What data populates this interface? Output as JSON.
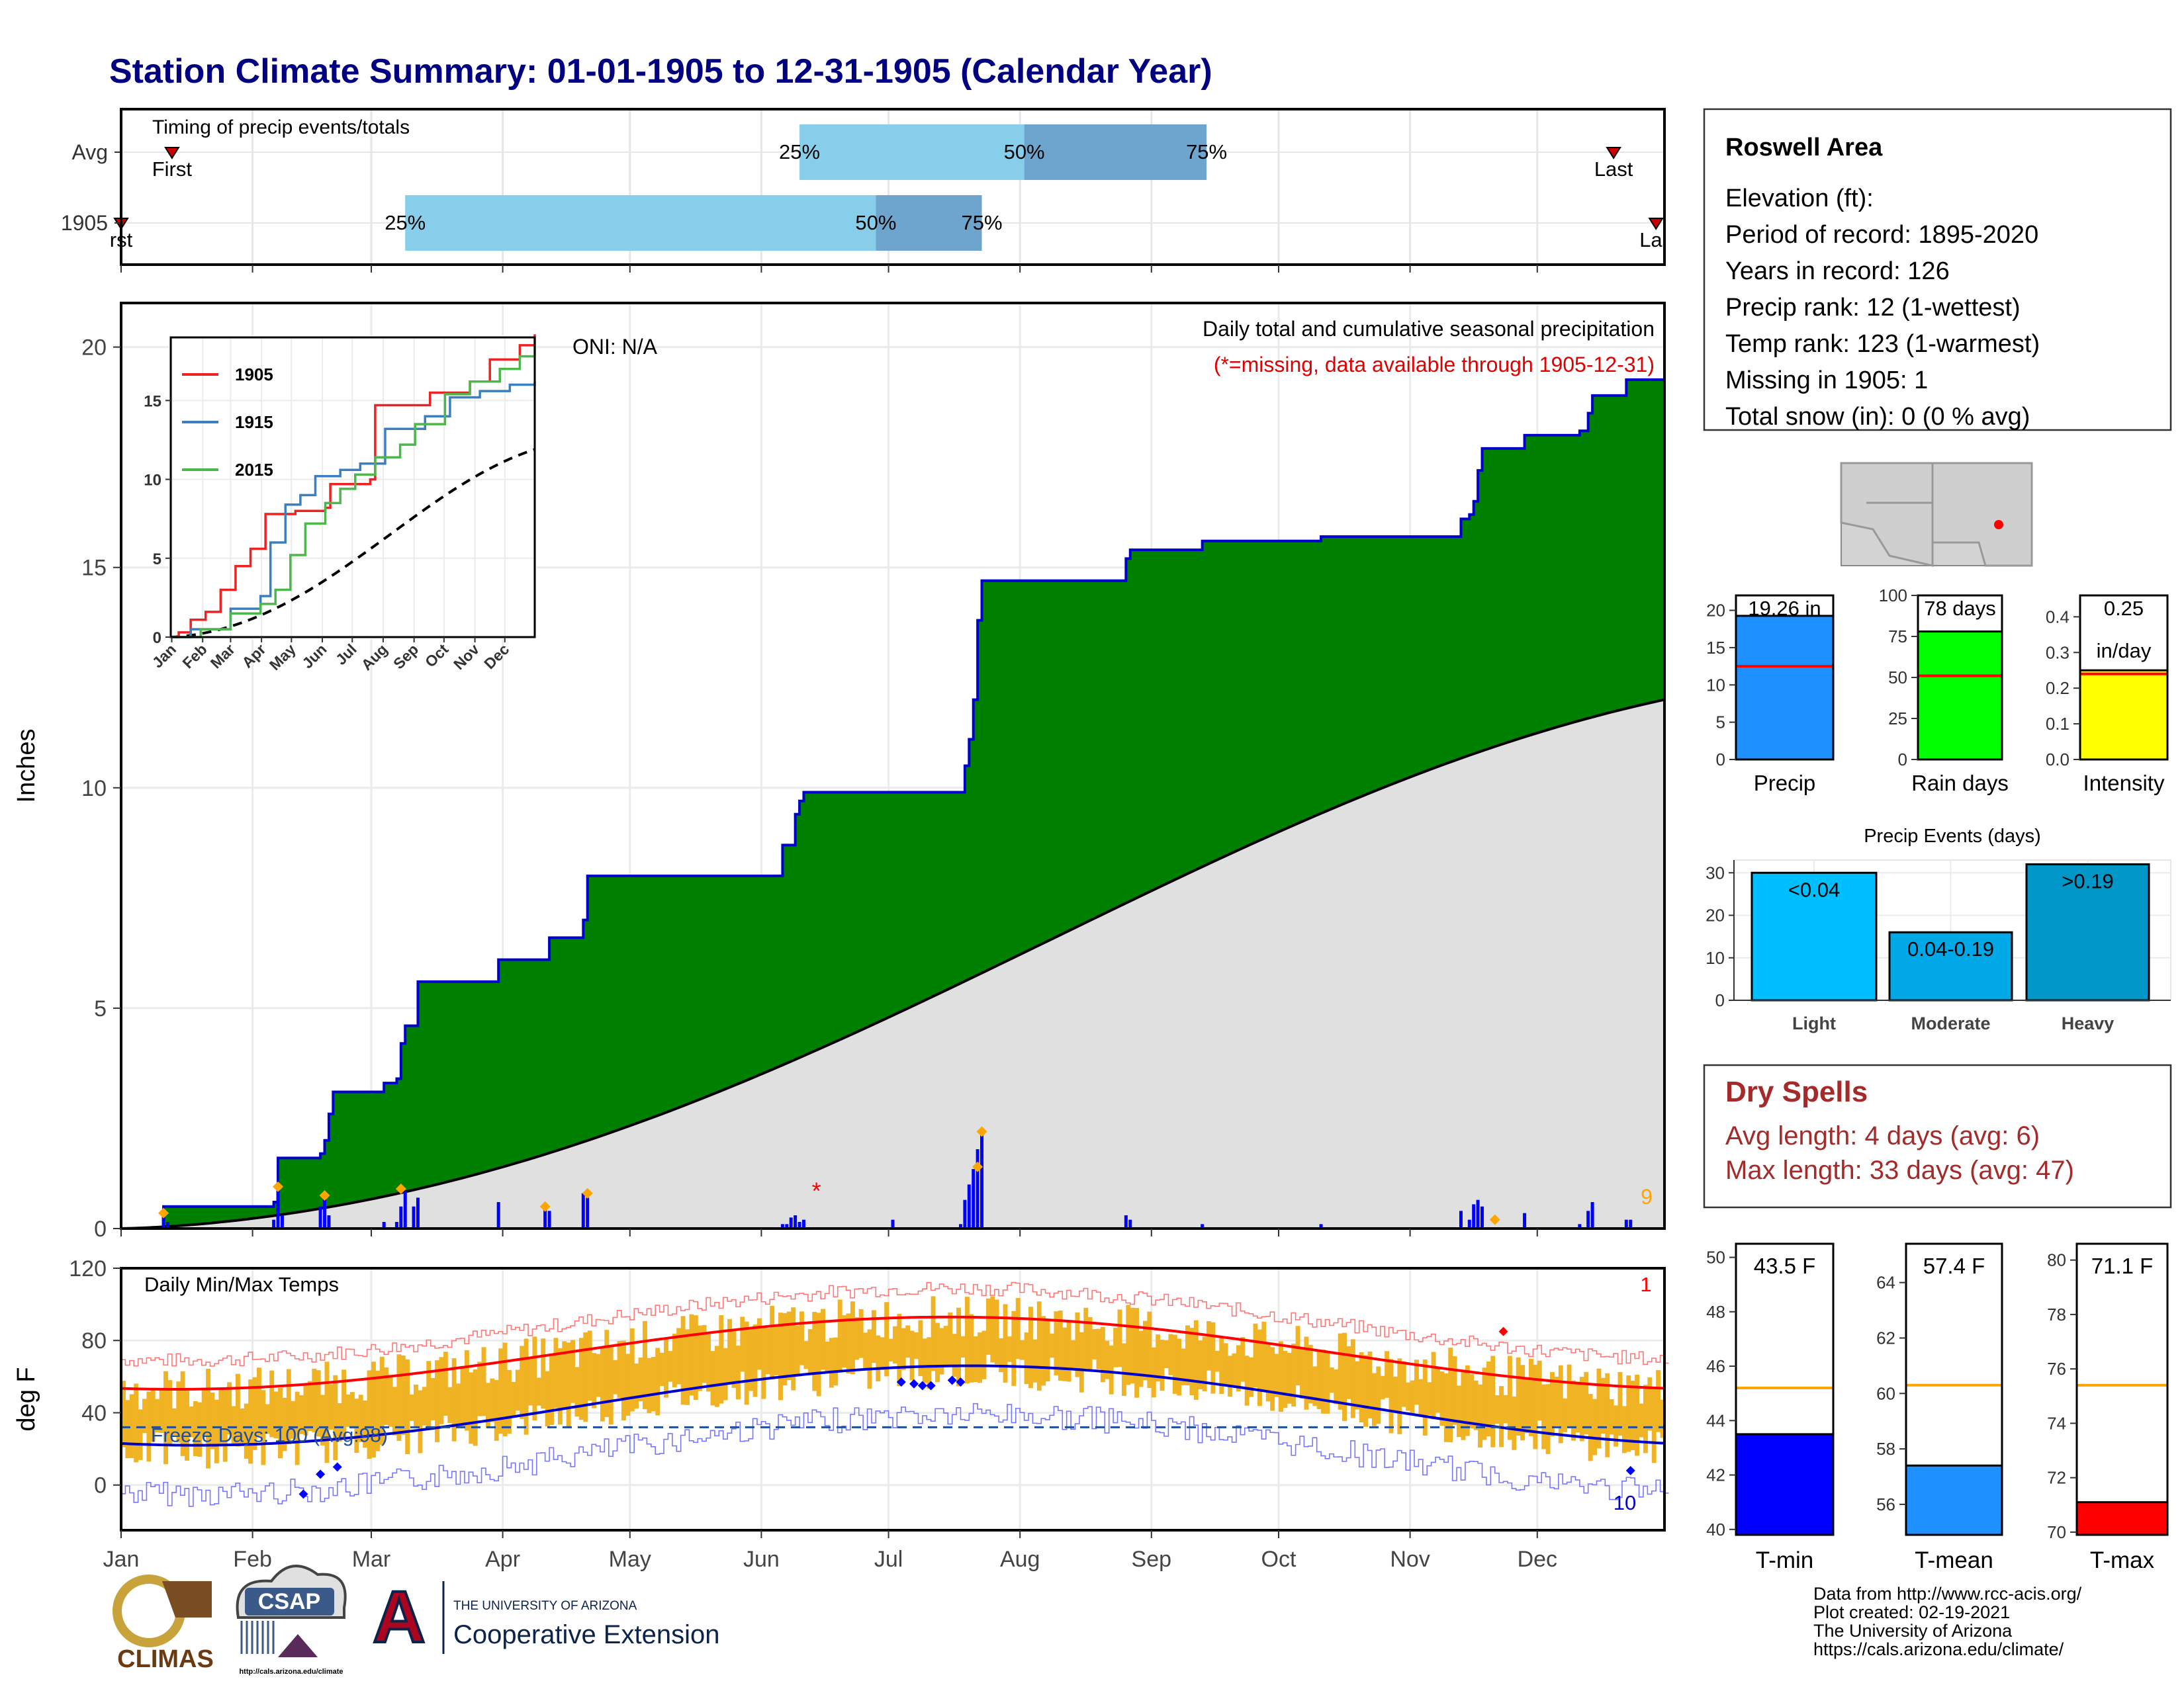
{
  "title": "Station Climate Summary: 01-01-1905 to 12-31-1905 (Calendar Year)",
  "months": [
    "Jan",
    "Feb",
    "Mar",
    "Apr",
    "May",
    "Jun",
    "Jul",
    "Aug",
    "Sep",
    "Oct",
    "Nov",
    "Dec"
  ],
  "timing": {
    "label": "Timing of precip events/totals",
    "rows": [
      {
        "name": "Avg",
        "first_doy": 13,
        "last_doy": 353,
        "p25": 161,
        "p50": 214,
        "p75": 257,
        "first_label": "First",
        "last_label": "Last",
        "p25_label": "25%",
        "p50_label": "50%",
        "p75_label": "75%"
      },
      {
        "name": "1905",
        "first_doy": 1,
        "last_doy": 363,
        "p25": 68,
        "p50": 179,
        "p75": 204,
        "first_label": "rst",
        "last_label": "Las",
        "p25_label": "25%",
        "p50_label": "50%",
        "p75_label": "75%"
      }
    ],
    "colors": {
      "light": "#87ceeb",
      "dark": "#6ea5cf",
      "marker": "#cc0000"
    }
  },
  "precip": {
    "ylabel": "Inches",
    "yticks": [
      0,
      5,
      10,
      15,
      20
    ],
    "ylim": [
      0,
      21
    ],
    "oni": "ONI: N/A",
    "note1": "Daily total and cumulative seasonal precipitation",
    "note2": "(*=missing, data available through 1905-12-31)",
    "count_label": "9",
    "missing_marker": "*",
    "missing_doy": 165,
    "colors": {
      "fill": "#008000",
      "line": "#0000cc",
      "avg_fill": "#e0e0e0",
      "avg_line": "#000000",
      "bar": "#0000ff",
      "diamond": "#ffa500",
      "missing": "#ff0000",
      "count": "#ffa500"
    },
    "steps": [
      [
        1,
        0
      ],
      [
        11,
        0.5
      ],
      [
        37,
        0.6
      ],
      [
        38,
        1.6
      ],
      [
        48,
        1.7
      ],
      [
        49,
        2.0
      ],
      [
        50,
        2.6
      ],
      [
        51,
        3.1
      ],
      [
        62,
        3.1
      ],
      [
        63,
        3.3
      ],
      [
        66,
        3.4
      ],
      [
        67,
        4.2
      ],
      [
        68,
        4.6
      ],
      [
        71,
        5.6
      ],
      [
        89,
        5.6
      ],
      [
        90,
        6.1
      ],
      [
        101,
        6.1
      ],
      [
        102,
        6.6
      ],
      [
        110,
        7.0
      ],
      [
        111,
        8.0
      ],
      [
        156,
        8.0
      ],
      [
        157,
        8.7
      ],
      [
        160,
        9.4
      ],
      [
        161,
        9.7
      ],
      [
        162,
        9.9
      ],
      [
        197,
        9.9
      ],
      [
        200,
        10.5
      ],
      [
        201,
        11.1
      ],
      [
        202,
        12.0
      ],
      [
        203,
        13.8
      ],
      [
        204,
        14.7
      ],
      [
        237,
        14.7
      ],
      [
        238,
        15.2
      ],
      [
        239,
        15.4
      ],
      [
        255,
        15.4
      ],
      [
        256,
        15.6
      ],
      [
        283,
        15.6
      ],
      [
        284,
        15.7
      ],
      [
        316,
        15.7
      ],
      [
        317,
        16.1
      ],
      [
        319,
        16.2
      ],
      [
        320,
        16.5
      ],
      [
        321,
        17.2
      ],
      [
        322,
        17.7
      ],
      [
        331,
        17.7
      ],
      [
        332,
        18.0
      ],
      [
        344,
        18.0
      ],
      [
        345,
        18.1
      ],
      [
        347,
        18.5
      ],
      [
        348,
        18.9
      ],
      [
        355,
        18.9
      ],
      [
        356,
        19.26
      ],
      [
        365,
        19.26
      ]
    ],
    "avg_total": 12.0,
    "daily": [
      [
        11,
        0.35
      ],
      [
        12,
        0.15
      ],
      [
        37,
        0.2
      ],
      [
        38,
        0.95
      ],
      [
        39,
        0.3
      ],
      [
        48,
        0.5
      ],
      [
        49,
        0.7
      ],
      [
        50,
        0.3
      ],
      [
        63,
        0.15
      ],
      [
        66,
        0.15
      ],
      [
        67,
        0.5
      ],
      [
        68,
        0.85
      ],
      [
        70,
        0.5
      ],
      [
        71,
        0.7
      ],
      [
        90,
        0.6
      ],
      [
        101,
        0.5
      ],
      [
        102,
        0.4
      ],
      [
        110,
        0.8
      ],
      [
        111,
        0.7
      ],
      [
        157,
        0.1
      ],
      [
        158,
        0.1
      ],
      [
        159,
        0.25
      ],
      [
        160,
        0.3
      ],
      [
        161,
        0.15
      ],
      [
        162,
        0.2
      ],
      [
        183,
        0.2
      ],
      [
        199,
        0.1
      ],
      [
        200,
        0.65
      ],
      [
        201,
        1.0
      ],
      [
        202,
        1.35
      ],
      [
        203,
        1.8
      ],
      [
        204,
        2.2
      ],
      [
        238,
        0.3
      ],
      [
        239,
        0.2
      ],
      [
        256,
        0.1
      ],
      [
        284,
        0.1
      ],
      [
        317,
        0.4
      ],
      [
        319,
        0.2
      ],
      [
        320,
        0.55
      ],
      [
        321,
        0.65
      ],
      [
        322,
        0.5
      ],
      [
        332,
        0.35
      ],
      [
        345,
        0.1
      ],
      [
        347,
        0.4
      ],
      [
        348,
        0.6
      ],
      [
        356,
        0.2
      ],
      [
        357,
        0.2
      ]
    ],
    "diamonds": [
      [
        11,
        0.35
      ],
      [
        38,
        0.95
      ],
      [
        49,
        0.75
      ],
      [
        67,
        0.9
      ],
      [
        101,
        0.5
      ],
      [
        111,
        0.8
      ],
      [
        203,
        1.4
      ],
      [
        204,
        2.2
      ],
      [
        325,
        0.2
      ]
    ]
  },
  "inset": {
    "yticks": [
      0,
      5,
      10,
      15
    ],
    "ylim": [
      0,
      19
    ],
    "legend": [
      {
        "name": "1905",
        "color": "#ee2222"
      },
      {
        "name": "1915",
        "color": "#3a7fc1"
      },
      {
        "name": "2015",
        "color": "#4cb84c"
      }
    ],
    "avg_color": "#000000",
    "series": [
      {
        "name": "1905",
        "points": [
          [
            0,
            0
          ],
          [
            8,
            0.3
          ],
          [
            20,
            1.1
          ],
          [
            35,
            1.6
          ],
          [
            50,
            3.0
          ],
          [
            65,
            4.5
          ],
          [
            80,
            5.6
          ],
          [
            95,
            7.8
          ],
          [
            125,
            8.0
          ],
          [
            155,
            8.2
          ],
          [
            160,
            9.7
          ],
          [
            200,
            10.0
          ],
          [
            205,
            14.7
          ],
          [
            260,
            15.5
          ],
          [
            300,
            16.2
          ],
          [
            320,
            17.6
          ],
          [
            350,
            18.5
          ],
          [
            365,
            19.2
          ]
        ]
      },
      {
        "name": "1915",
        "points": [
          [
            0,
            0
          ],
          [
            20,
            0.5
          ],
          [
            60,
            1.8
          ],
          [
            90,
            2.6
          ],
          [
            100,
            6.0
          ],
          [
            115,
            8.4
          ],
          [
            130,
            9.0
          ],
          [
            145,
            10.2
          ],
          [
            170,
            10.6
          ],
          [
            190,
            11.0
          ],
          [
            215,
            13.2
          ],
          [
            255,
            14.0
          ],
          [
            280,
            15.2
          ],
          [
            310,
            15.6
          ],
          [
            340,
            16.0
          ],
          [
            365,
            16.2
          ]
        ]
      },
      {
        "name": "2015",
        "points": [
          [
            0,
            0
          ],
          [
            30,
            0.5
          ],
          [
            60,
            1.5
          ],
          [
            90,
            2.1
          ],
          [
            105,
            3.0
          ],
          [
            120,
            5.2
          ],
          [
            135,
            7.2
          ],
          [
            155,
            8.5
          ],
          [
            170,
            9.4
          ],
          [
            185,
            10.3
          ],
          [
            205,
            11.4
          ],
          [
            230,
            12.2
          ],
          [
            245,
            13.5
          ],
          [
            275,
            15.4
          ],
          [
            300,
            16.2
          ],
          [
            330,
            17.0
          ],
          [
            350,
            17.8
          ],
          [
            365,
            18.5
          ]
        ]
      }
    ],
    "avg_total": 11.9
  },
  "temps": {
    "label": "Daily Min/Max Temps",
    "ylabel": "deg F",
    "yticks": [
      0,
      40,
      80,
      120
    ],
    "ylim": [
      -25,
      120
    ],
    "freeze": {
      "label": "Freeze Days: 100 (Avg:98)",
      "level": 32
    },
    "max_count": "1",
    "min_count": "10",
    "colors": {
      "bar": "#f0b323",
      "max_avg": "#ff0000",
      "min_avg": "#0000cc",
      "max_record": "#ff7777",
      "min_record": "#7777ff",
      "freeze": "#1f4e9e",
      "diamond_min": "#0000ff",
      "diamond_max": "#ff0000"
    },
    "diamonds_min": [
      [
        44,
        -5
      ],
      [
        48,
        6
      ],
      [
        52,
        10
      ],
      [
        185,
        57
      ],
      [
        188,
        56
      ],
      [
        190,
        55
      ],
      [
        192,
        55
      ],
      [
        197,
        58
      ],
      [
        199,
        57
      ],
      [
        357,
        8
      ]
    ],
    "diamonds_max": [
      [
        327,
        85
      ]
    ]
  },
  "info": {
    "station": "Roswell Area",
    "lines": [
      "Elevation (ft):",
      "Period of record: 1895-2020",
      "Years in record: 126",
      "Precip rank: 12 (1-wettest)",
      "Temp rank: 123 (1-warmest)",
      "Missing in 1905: 1",
      "Total snow (in): 0 (0 % avg)"
    ]
  },
  "bars3": [
    {
      "label": "Precip",
      "value": 19.26,
      "value_label": "19.26 in",
      "avg": 12.5,
      "yticks": [
        0,
        5,
        10,
        15,
        20
      ],
      "ylim": [
        0,
        22
      ],
      "color": "#1e90ff"
    },
    {
      "label": "Rain days",
      "value": 78,
      "value_label": "78 days",
      "avg": 51,
      "yticks": [
        0,
        25,
        50,
        75,
        100
      ],
      "ylim": [
        0,
        100
      ],
      "color": "#00ff00"
    },
    {
      "label": "Intensity",
      "value": 0.25,
      "value_label": "0.25",
      "value_label2": "in/day",
      "avg": 0.24,
      "yticks": [
        "0.0",
        "0.1",
        "0.2",
        "0.3",
        "0.4"
      ],
      "ylim": [
        0,
        0.46
      ],
      "color": "#ffff00"
    }
  ],
  "events": {
    "title": "Precip Events (days)",
    "yticks": [
      0,
      10,
      20,
      30
    ],
    "ylim": [
      0,
      33
    ],
    "bars": [
      {
        "name": "Light",
        "label": "<0.04",
        "value": 30,
        "color": "#00bfff"
      },
      {
        "name": "Moderate",
        "label": "0.04-0.19",
        "value": 16,
        "color": "#00a8e8"
      },
      {
        "name": "Heavy",
        "label": ">0.19",
        "value": 32,
        "color": "#0096c7"
      }
    ]
  },
  "dry": {
    "title": "Dry Spells",
    "avg": "Avg length: 4 days (avg: 6)",
    "max": "Max length: 33 days (avg: 47)",
    "color": "#a52a2a"
  },
  "tbars": [
    {
      "label": "T-min",
      "value": 43.5,
      "value_label": "43.5 F",
      "avg": 45.2,
      "yticks": [
        40,
        42,
        44,
        46,
        48,
        50
      ],
      "ylim": [
        39.8,
        50.5
      ],
      "color": "#0000ff"
    },
    {
      "label": "T-mean",
      "value": 57.4,
      "value_label": "57.4 F",
      "avg": 60.3,
      "yticks": [
        56,
        58,
        60,
        62,
        64
      ],
      "ylim": [
        54.9,
        65.4
      ],
      "color": "#1e90ff"
    },
    {
      "label": "T-max",
      "value": 71.1,
      "value_label": "71.1 F",
      "avg": 75.4,
      "yticks": [
        70,
        72,
        74,
        76,
        78,
        80
      ],
      "ylim": [
        69.9,
        80.6
      ],
      "color": "#ff0000"
    }
  ],
  "credits": [
    "Data from http://www.rcc-acis.org/",
    "Plot created: 02-19-2021",
    "The University of Arizona",
    "https://cals.arizona.edu/climate/"
  ],
  "logos": {
    "climas": "CLIMAS",
    "csap": "CSAP",
    "csap_url": "http://cals.arizona.edu/climate",
    "ua_small": "THE UNIVERSITY OF ARIZONA",
    "ua_big": "Cooperative Extension",
    "ua_letter": "A"
  }
}
